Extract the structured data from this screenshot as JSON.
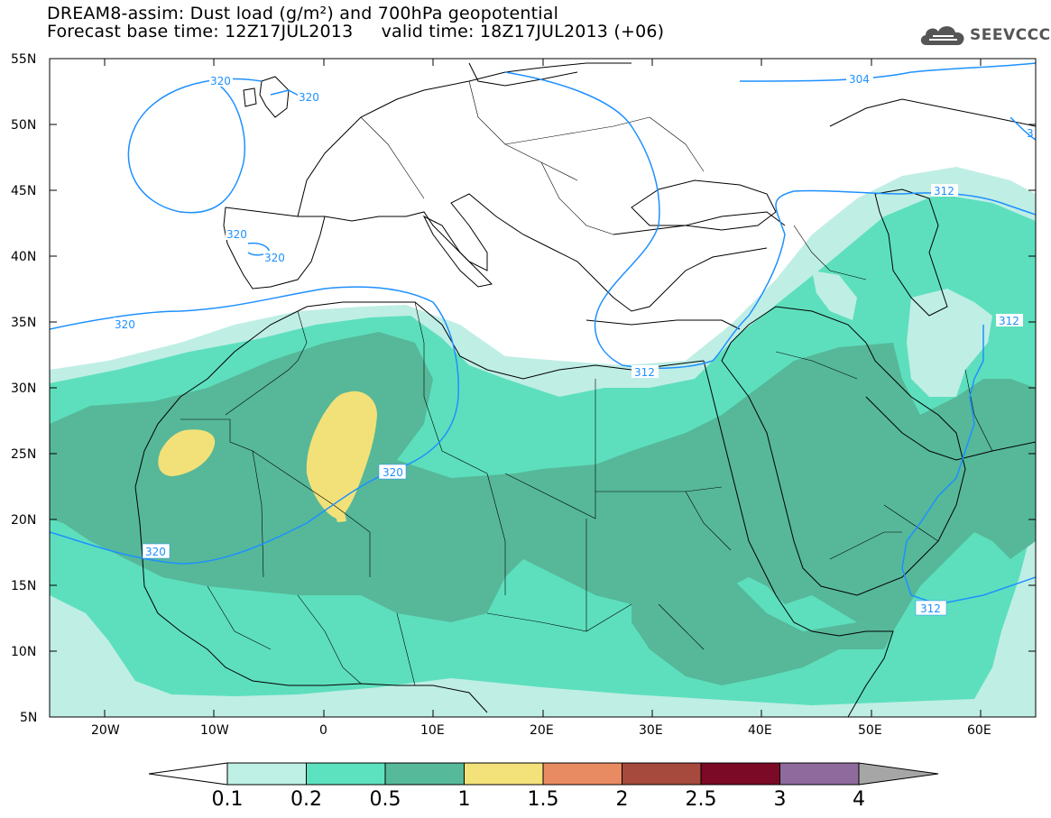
{
  "title": {
    "line1": "DREAM8-assim: Dust load (g/m²) and 700hPa geopotential",
    "base_time": "Forecast base time: 12Z17JUL2013",
    "valid_time": "valid time: 18Z17JUL2013 (+06)"
  },
  "logo": {
    "text": "SEEVCCC",
    "icon": "cloud-icon"
  },
  "map": {
    "lat_labels": [
      "55N",
      "50N",
      "45N",
      "40N",
      "35N",
      "30N",
      "25N",
      "20N",
      "15N",
      "10N",
      "5N"
    ],
    "lon_labels": [
      "20W",
      "10W",
      "0",
      "10E",
      "20E",
      "30E",
      "40E",
      "50E",
      "60E"
    ],
    "contour_labels": [
      "320",
      "320",
      "320",
      "320",
      "320",
      "320",
      "320",
      "304",
      "312",
      "312",
      "312",
      "312",
      "3"
    ],
    "colors": {
      "land_border": "#000000",
      "contour": "#1e90ff",
      "dust_0_1": "#bfeee5",
      "dust_0_2": "#5ddfbd",
      "dust_0_5": "#56b899",
      "dust_1": "#f2e178"
    }
  },
  "colorbar": {
    "labels": [
      "0.1",
      "0.2",
      "0.5",
      "1",
      "1.5",
      "2",
      "2.5",
      "3",
      "4"
    ],
    "colors": [
      "#bff0e6",
      "#5de2c0",
      "#56b99a",
      "#f3e27a",
      "#e98b62",
      "#a54a3d",
      "#7a0a25",
      "#8e6b9c",
      "#a6a6a6"
    ]
  }
}
